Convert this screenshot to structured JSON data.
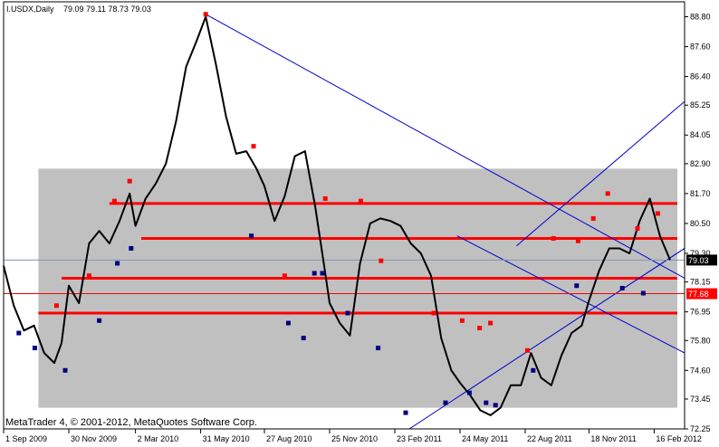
{
  "header": {
    "symbol": "I.USDX,Daily",
    "ohlc": "79.09 79.11 78.73 79.03"
  },
  "footer": {
    "copyright": "MetaTrader 4, © 2001-2012, MetaQuotes Software Corp."
  },
  "colors": {
    "background": "#ffffff",
    "price_line": "#000000",
    "zone": "#c0c0c0",
    "levels": "#ff0000",
    "trendlines": "#0000cc",
    "swing_high": "#ff0000",
    "swing_low": "#000080",
    "bid_line": "#7f9ab0",
    "current_price_tag": "#000000",
    "level_price_tag": "#ff0000"
  },
  "chart_data": {
    "type": "line",
    "title": "I.USDX,Daily",
    "x_tick_labels": [
      "1 Sep 2009",
      "30 Nov 2009",
      "2 Mar 2010",
      "31 May 2010",
      "27 Aug 2010",
      "25 Nov 2010",
      "23 Feb 2011",
      "24 May 2011",
      "22 Aug 2011",
      "18 Nov 2011",
      "16 Feb 2012"
    ],
    "y_tick_labels": [
      88.8,
      87.6,
      86.4,
      85.25,
      84.05,
      82.9,
      81.7,
      80.5,
      79.3,
      78.15,
      76.95,
      75.8,
      74.6,
      73.45,
      72.25
    ],
    "ylim": [
      72.25,
      89.4
    ],
    "grid": false,
    "current_price": 79.03,
    "current_price_label": "79.03",
    "marked_level": 77.68,
    "marked_level_label": "77.68",
    "series": [
      {
        "x": [
          "2009-09-01",
          "2009-09-15",
          "2009-09-29",
          "2009-10-13",
          "2009-10-27",
          "2009-11-10",
          "2009-11-20",
          "2009-11-30",
          "2009-12-14",
          "2009-12-28",
          "2010-01-11",
          "2010-01-25",
          "2010-02-08",
          "2010-02-22",
          "2010-03-02",
          "2010-03-16",
          "2010-03-30",
          "2010-04-13",
          "2010-04-27",
          "2010-05-11",
          "2010-05-25",
          "2010-06-07",
          "2010-06-21",
          "2010-07-05",
          "2010-07-19",
          "2010-08-02",
          "2010-08-16",
          "2010-08-27",
          "2010-09-10",
          "2010-09-24",
          "2010-10-08",
          "2010-10-22",
          "2010-11-05",
          "2010-11-19",
          "2010-11-25",
          "2010-12-09",
          "2010-12-23",
          "2011-01-06",
          "2011-01-20",
          "2011-02-03",
          "2011-02-17",
          "2011-03-03",
          "2011-03-17",
          "2011-03-31",
          "2011-04-14",
          "2011-04-28",
          "2011-05-12",
          "2011-05-24",
          "2011-06-07",
          "2011-06-21",
          "2011-07-05",
          "2011-07-19",
          "2011-08-02",
          "2011-08-16",
          "2011-08-30",
          "2011-09-13",
          "2011-09-27",
          "2011-10-11",
          "2011-10-25",
          "2011-11-08",
          "2011-11-18",
          "2011-12-02",
          "2011-12-16",
          "2011-12-30",
          "2012-01-13",
          "2012-01-27",
          "2012-02-10",
          "2012-02-24",
          "2012-03-09"
        ],
        "y": [
          78.8,
          77.2,
          76.2,
          76.4,
          75.3,
          74.9,
          75.7,
          78.0,
          77.3,
          79.7,
          80.2,
          79.7,
          80.6,
          81.7,
          80.4,
          81.5,
          82.1,
          82.9,
          84.6,
          86.8,
          87.8,
          88.8,
          86.9,
          84.8,
          83.3,
          83.4,
          82.7,
          82.0,
          80.6,
          81.6,
          83.2,
          83.4,
          81.2,
          78.5,
          77.3,
          76.5,
          76.0,
          78.9,
          80.5,
          80.7,
          80.6,
          80.4,
          79.7,
          79.3,
          78.4,
          75.9,
          74.6,
          74.1,
          73.6,
          73.0,
          72.8,
          73.1,
          74.0,
          74.0,
          75.3,
          74.3,
          74.0,
          75.2,
          76.1,
          76.4,
          77.4,
          78.6,
          79.5,
          79.5,
          79.3,
          80.6,
          81.5,
          80.0,
          79.03
        ],
        "swing_highs": [
          {
            "x": "2009-11-13",
            "y": 77.2
          },
          {
            "x": "2009-12-28",
            "y": 78.4
          },
          {
            "x": "2010-02-01",
            "y": 81.4
          },
          {
            "x": "2010-02-22",
            "y": 82.2
          },
          {
            "x": "2010-06-07",
            "y": 88.9
          },
          {
            "x": "2010-08-12",
            "y": 83.6
          },
          {
            "x": "2010-09-24",
            "y": 78.4
          },
          {
            "x": "2010-11-19",
            "y": 81.5
          },
          {
            "x": "2011-01-07",
            "y": 81.4
          },
          {
            "x": "2011-02-04",
            "y": 79.0
          },
          {
            "x": "2011-04-18",
            "y": 76.9
          },
          {
            "x": "2011-05-27",
            "y": 76.6
          },
          {
            "x": "2011-06-20",
            "y": 76.3
          },
          {
            "x": "2011-07-05",
            "y": 76.5
          },
          {
            "x": "2011-08-25",
            "y": 75.4
          },
          {
            "x": "2011-09-30",
            "y": 79.9
          },
          {
            "x": "2011-11-03",
            "y": 79.8
          },
          {
            "x": "2011-11-24",
            "y": 80.7
          },
          {
            "x": "2011-12-14",
            "y": 81.7
          },
          {
            "x": "2012-01-24",
            "y": 80.3
          },
          {
            "x": "2012-02-21",
            "y": 80.9
          }
        ],
        "swing_lows": [
          {
            "x": "2009-09-22",
            "y": 76.1
          },
          {
            "x": "2009-10-14",
            "y": 75.5
          },
          {
            "x": "2009-11-25",
            "y": 74.6
          },
          {
            "x": "2010-01-11",
            "y": 76.6
          },
          {
            "x": "2010-02-05",
            "y": 78.9
          },
          {
            "x": "2010-02-24",
            "y": 79.5
          },
          {
            "x": "2010-08-09",
            "y": 80.0
          },
          {
            "x": "2010-09-29",
            "y": 76.5
          },
          {
            "x": "2010-10-20",
            "y": 75.9
          },
          {
            "x": "2010-11-04",
            "y": 78.5
          },
          {
            "x": "2010-11-15",
            "y": 78.5
          },
          {
            "x": "2010-12-20",
            "y": 76.9
          },
          {
            "x": "2011-01-31",
            "y": 75.5
          },
          {
            "x": "2011-03-10",
            "y": 72.9
          },
          {
            "x": "2011-05-04",
            "y": 73.3
          },
          {
            "x": "2011-06-06",
            "y": 73.7
          },
          {
            "x": "2011-06-29",
            "y": 73.3
          },
          {
            "x": "2011-07-12",
            "y": 73.2
          },
          {
            "x": "2011-09-02",
            "y": 74.6
          },
          {
            "x": "2011-11-01",
            "y": 78.0
          },
          {
            "x": "2012-01-03",
            "y": 77.9
          },
          {
            "x": "2012-02-01",
            "y": 77.7
          }
        ]
      }
    ],
    "zones": [
      {
        "x0": "2009-10-19",
        "x1": "2012-03-19",
        "y0": 73.1,
        "y1": 82.7
      }
    ],
    "horizontal_levels": [
      {
        "x0": "2010-01-25",
        "x1": "2012-03-19",
        "y": 81.3
      },
      {
        "x0": "2010-03-10",
        "x1": "2012-03-19",
        "y": 79.9
      },
      {
        "x0": "2009-11-20",
        "x1": "2012-03-19",
        "y": 78.3
      },
      {
        "x0": "2009-10-19",
        "x1": "2012-03-19",
        "y": 76.9
      }
    ],
    "trendlines": [
      {
        "x0": "2010-06-07",
        "y0": 88.9,
        "x1": "2012-03-29",
        "y1": 78.3
      },
      {
        "x0": "2011-03-15",
        "y0": 72.25,
        "x1": "2012-03-29",
        "y1": 79.5
      },
      {
        "x0": "2011-08-10",
        "y0": 79.6,
        "x1": "2012-03-29",
        "y1": 85.4
      },
      {
        "x0": "2011-05-20",
        "y0": 80.0,
        "x1": "2012-03-29",
        "y1": 75.3
      }
    ]
  }
}
